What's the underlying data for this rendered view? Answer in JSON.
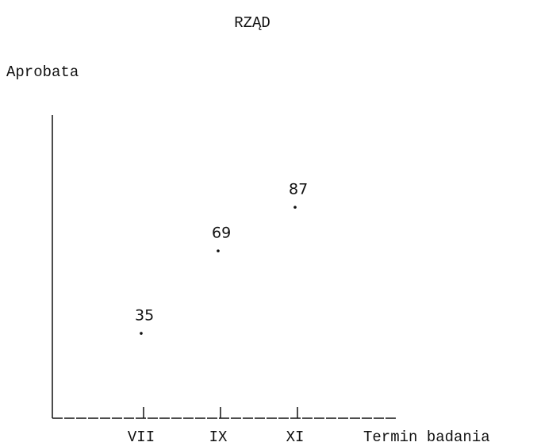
{
  "chart_data": {
    "type": "scatter",
    "title": "RZĄD",
    "y_label": "Aprobata",
    "x_label": "Termin badania",
    "categories": [
      "VII",
      "IX",
      "XI"
    ],
    "values": [
      35,
      69,
      87
    ],
    "color": "#111111",
    "ylim": [
      0,
      125
    ]
  }
}
